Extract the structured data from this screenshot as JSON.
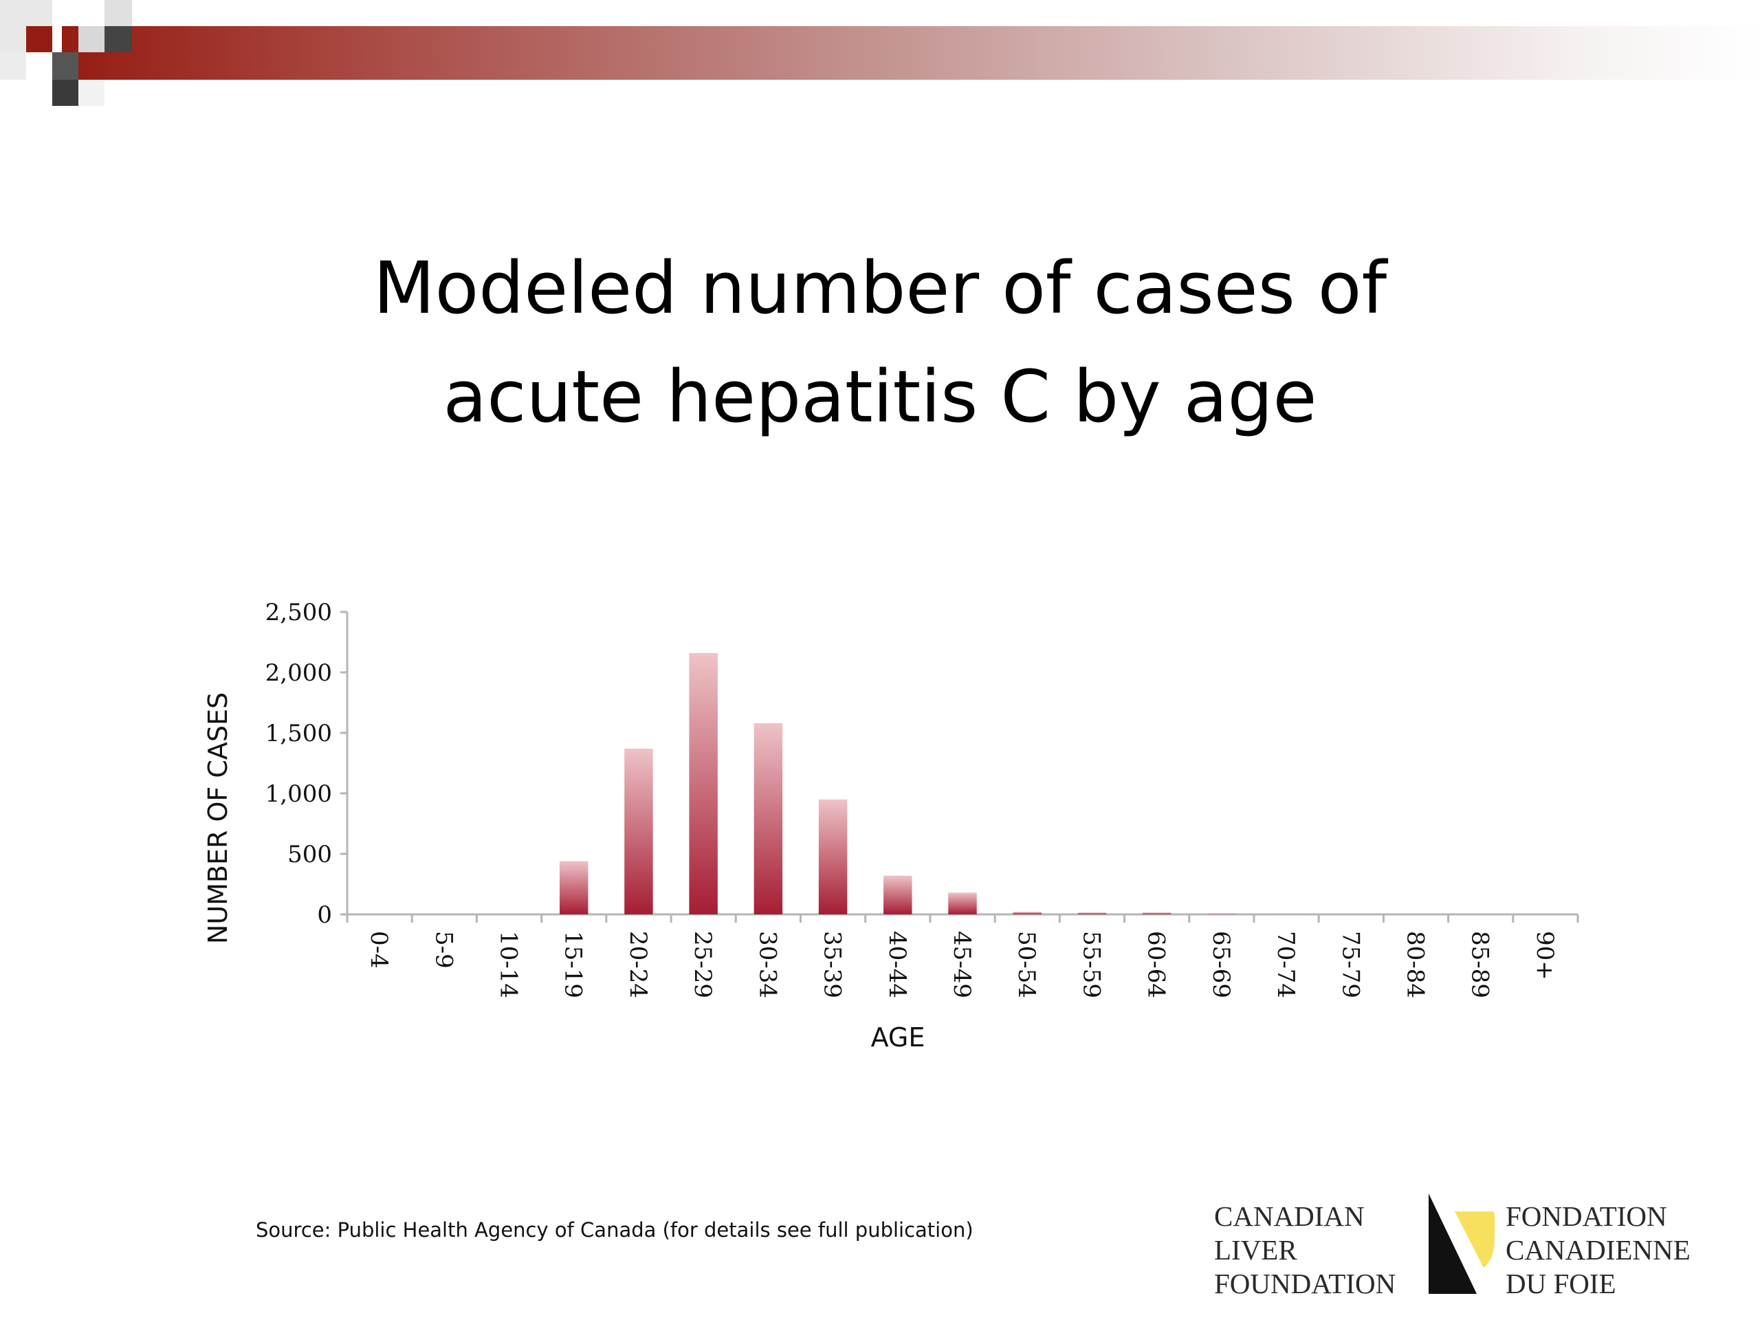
{
  "slide": {
    "title": "Modeled number of cases of\nacute hepatitis C by age",
    "source": "Source: Public Health Agency of Canada (for details see full publication)"
  },
  "logo": {
    "english_lines": [
      "CANADIAN",
      "LIVER",
      "FOUNDATION"
    ],
    "french_lines": [
      "FONDATION",
      "CANADIENNE",
      "DU FOIE"
    ]
  },
  "colors": {
    "accent": "#951c13",
    "bar_top": "#eec3c8",
    "bar_bottom": "#a51d33",
    "logo_yellow": "#f7e05e"
  },
  "chart_data": {
    "type": "bar",
    "xlabel": "AGE",
    "ylabel": "NUMBER OF CASES",
    "ylim": [
      0,
      2500
    ],
    "yticks": [
      0,
      500,
      1000,
      1500,
      2000,
      2500
    ],
    "ytick_labels": [
      "0",
      "500",
      "1,000",
      "1,500",
      "2,000",
      "2,500"
    ],
    "categories": [
      "0-4",
      "5-9",
      "10-14",
      "15-19",
      "20-24",
      "25-29",
      "30-34",
      "35-39",
      "40-44",
      "45-49",
      "50-54",
      "55-59",
      "60-64",
      "65-69",
      "70-74",
      "75-79",
      "80-84",
      "85-89",
      "90+"
    ],
    "values": [
      0,
      0,
      0,
      440,
      1370,
      2160,
      1580,
      950,
      320,
      180,
      20,
      15,
      15,
      5,
      2,
      0,
      0,
      0,
      0
    ],
    "grid": false,
    "legend": "none"
  }
}
